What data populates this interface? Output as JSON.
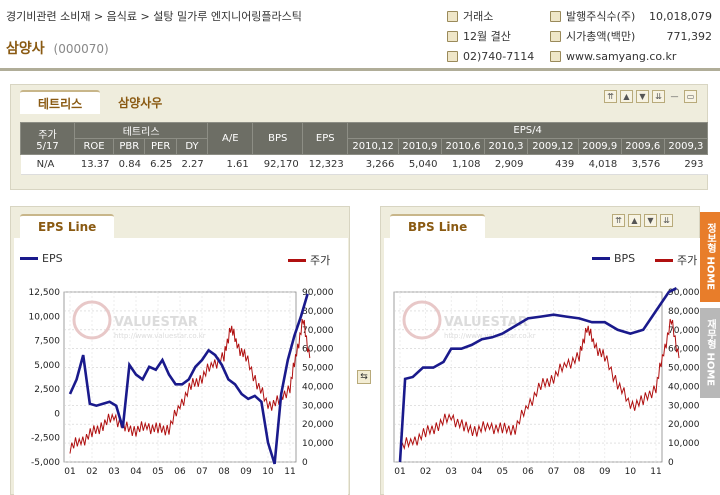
{
  "breadcrumb": "경기비관련 소비재 > 음식료 > 설탕 밀가루 엔지니어링플라스틱",
  "company": {
    "name": "삼양사",
    "code": "(000070)"
  },
  "info": {
    "market": "거래소",
    "settle": "12월 결산",
    "phone": "02)740-7114",
    "shares_label": "발행주식수(주)",
    "shares_value": "10,018,079",
    "cap_label": "시가총액(백만)",
    "cap_value": "771,392",
    "website": "www.samyang.co.kr"
  },
  "tabs": {
    "t1": "테트리스",
    "t2": "삼양사우"
  },
  "table": {
    "h_price": "주가",
    "h_date": "5/17",
    "h_group": "테트리스",
    "h_ae": "A/E",
    "h_bps": "BPS",
    "h_eps": "EPS",
    "h_eps4": "EPS/4",
    "sub": [
      "ROE",
      "PBR",
      "PER",
      "DY"
    ],
    "periods": [
      "2010,12",
      "2010,9",
      "2010,6",
      "2010,3",
      "2009,12",
      "2009,9",
      "2009,6",
      "2009,3"
    ],
    "row": {
      "price": "N/A",
      "vals": [
        "13.37",
        "0.84",
        "6.25",
        "2.27"
      ],
      "ae": "1.61",
      "bps": "92,170",
      "eps": "12,323",
      "eps4": [
        "3,266",
        "5,040",
        "1,108",
        "2,909",
        "439",
        "4,018",
        "3,576",
        "293"
      ]
    }
  },
  "charts": {
    "eps_tab": "EPS Line",
    "bps_tab": "BPS Line",
    "legend_eps": "EPS",
    "legend_bps": "BPS",
    "legend_price": "주가",
    "watermark": "VALUESTAR",
    "watermark_url": "http://www.valuestar.co.kr"
  },
  "side": {
    "s1": "정보형 HOME",
    "s2": "재무형 HOME"
  },
  "colors": {
    "eps_line": "#1a1a8c",
    "price_line": "#b01010"
  },
  "chart_data": [
    {
      "type": "line",
      "x": [
        "01",
        "02",
        "03",
        "04",
        "05",
        "06",
        "07",
        "08",
        "09",
        "10",
        "11"
      ],
      "ylim_left": [
        -5000,
        12500
      ],
      "ylim_right": [
        0,
        90000
      ],
      "yticks_left": [
        "12,500",
        "10,000",
        "7,500",
        "5,000",
        "2,500",
        "0",
        "-2,500",
        "-5,000"
      ],
      "yticks_right": [
        "90,000",
        "80,000",
        "70,000",
        "60,000",
        "50,000",
        "40,000",
        "30,000",
        "20,000",
        "10,000",
        "0"
      ],
      "series": [
        {
          "name": "EPS",
          "axis": "left",
          "x": [
            0,
            0.3,
            0.6,
            0.9,
            1.2,
            1.5,
            1.8,
            2.1,
            2.4,
            2.7,
            3.0,
            3.3,
            3.6,
            3.9,
            4.2,
            4.5,
            4.8,
            5.1,
            5.4,
            5.7,
            6.0,
            6.3,
            6.6,
            6.9,
            7.2,
            7.5,
            7.8,
            8.1,
            8.4,
            8.7,
            9.0,
            9.3,
            9.6,
            9.9,
            10.2,
            10.5,
            10.8
          ],
          "values": [
            2000,
            3500,
            6000,
            1000,
            800,
            1000,
            1200,
            800,
            -1500,
            5000,
            4000,
            3500,
            4800,
            4500,
            5500,
            4000,
            3000,
            3000,
            3500,
            4800,
            5500,
            6500,
            6000,
            5000,
            3500,
            3000,
            2000,
            1500,
            1800,
            1200,
            -3000,
            -5200,
            2000,
            5500,
            8000,
            10000,
            12300
          ]
        },
        {
          "name": "주가",
          "axis": "right",
          "x": [
            0,
            0.5,
            1,
            1.5,
            2,
            2.5,
            3,
            3.5,
            4,
            4.5,
            5,
            5.5,
            6,
            6.5,
            7,
            7.3,
            7.6,
            8,
            8.5,
            9,
            9.5,
            10,
            10.3,
            10.6,
            10.9
          ],
          "values": [
            8000,
            11000,
            15000,
            20000,
            24000,
            18000,
            17000,
            19000,
            17000,
            18000,
            30000,
            40000,
            45000,
            52000,
            55000,
            72000,
            62000,
            55000,
            42000,
            30000,
            32000,
            40000,
            58000,
            75000,
            55000
          ]
        }
      ]
    },
    {
      "type": "line",
      "x": [
        "01",
        "02",
        "03",
        "04",
        "05",
        "06",
        "07",
        "08",
        "09",
        "10",
        "11"
      ],
      "ylim_right": [
        0,
        90000
      ],
      "yticks_right": [
        "90,000",
        "80,000",
        "70,000",
        "60,000",
        "50,000",
        "40,000",
        "30,000",
        "20,000",
        "10,000",
        "0"
      ],
      "series": [
        {
          "name": "BPS",
          "axis": "left",
          "x": [
            0,
            0.2,
            0.5,
            0.9,
            1.3,
            1.7,
            2.0,
            2.4,
            2.8,
            3.2,
            3.6,
            4.0,
            4.5,
            5.0,
            5.5,
            6.0,
            6.5,
            7.0,
            7.5,
            8.0,
            8.5,
            9.0,
            9.5,
            10.0,
            10.5,
            10.8
          ],
          "values": [
            0,
            44,
            45,
            50,
            50,
            53,
            60,
            60,
            62,
            65,
            66,
            68,
            72,
            76,
            77,
            78,
            77,
            76,
            74,
            74,
            70,
            68,
            70,
            80,
            90,
            92
          ]
        },
        {
          "name": "주가",
          "axis": "right",
          "x": [
            0,
            0.5,
            1,
            1.5,
            2,
            2.5,
            3,
            3.5,
            4,
            4.5,
            5,
            5.5,
            6,
            6.5,
            7,
            7.3,
            7.6,
            8,
            8.5,
            9,
            9.5,
            10,
            10.3,
            10.6,
            10.9
          ],
          "values": [
            8000,
            11000,
            15000,
            20000,
            24000,
            18000,
            17000,
            19000,
            17000,
            18000,
            30000,
            40000,
            45000,
            52000,
            55000,
            72000,
            62000,
            55000,
            42000,
            30000,
            32000,
            40000,
            58000,
            75000,
            55000
          ]
        }
      ]
    }
  ]
}
